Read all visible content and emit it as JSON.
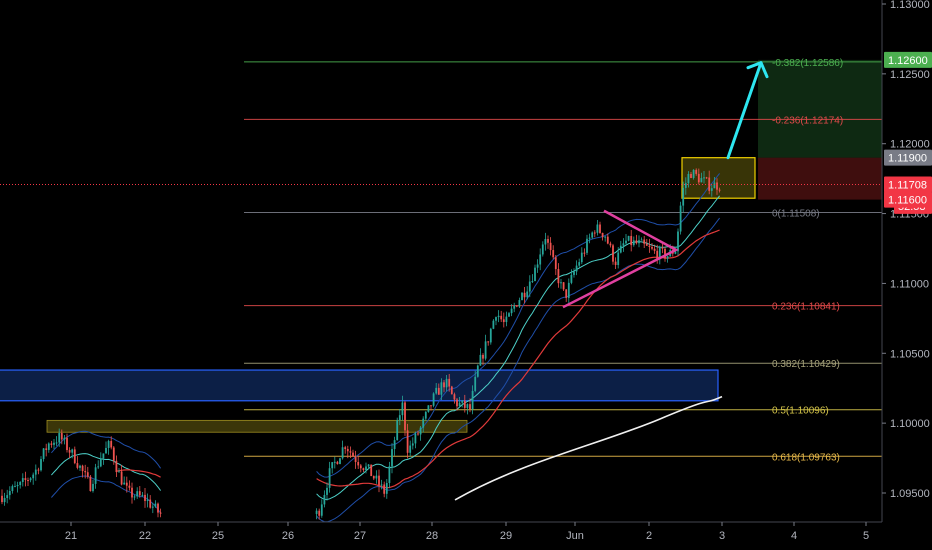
{
  "chart_data": {
    "type": "candlestick",
    "symbol_pair_note": "",
    "x_ticks": [
      "21",
      "22",
      "25",
      "26",
      "27",
      "28",
      "29",
      "Jun",
      "2",
      "3",
      "4",
      "5"
    ],
    "y_ticks": [
      "1.13000",
      "1.12500",
      "1.12000",
      "1.11500",
      "1.11000",
      "1.10500",
      "1.10000",
      "1.09500"
    ],
    "ylim": [
      1.0935,
      1.1305
    ],
    "price_tags": [
      {
        "label": "1.12600",
        "value": 1.126,
        "color": "#4caf50"
      },
      {
        "label": "1.11900",
        "value": 1.119,
        "color": "#787b86"
      },
      {
        "label": "1.11708",
        "value": 1.11708,
        "color": "#f23645"
      },
      {
        "label": "52:53",
        "value": 1.11555,
        "color": "#f23645"
      },
      {
        "label": "1.11600",
        "value": 1.116,
        "color": "#f23645"
      }
    ],
    "fib_levels": [
      {
        "label": "-0.382(1.12586)",
        "value": 1.12586,
        "color": "#4caf50"
      },
      {
        "label": "-0.236(1.12174)",
        "value": 1.12174,
        "color": "#e04a4a"
      },
      {
        "label": "0(1.11508)",
        "value": 1.11508,
        "color": "#787b86"
      },
      {
        "label": "0.236(1.10841)",
        "value": 1.10841,
        "color": "#e04a4a"
      },
      {
        "label": "0.382(1.10429)",
        "value": 1.10429,
        "color": "#a5a17a"
      },
      {
        "label": "0.5(1.10096)",
        "value": 1.10096,
        "color": "#d4c44a"
      },
      {
        "label": "0.618(1.09763)",
        "value": 1.09763,
        "color": "#e6b84a"
      }
    ],
    "current_price": 1.11708,
    "up_color": "#26a69a",
    "down_color": "#ef5350"
  }
}
